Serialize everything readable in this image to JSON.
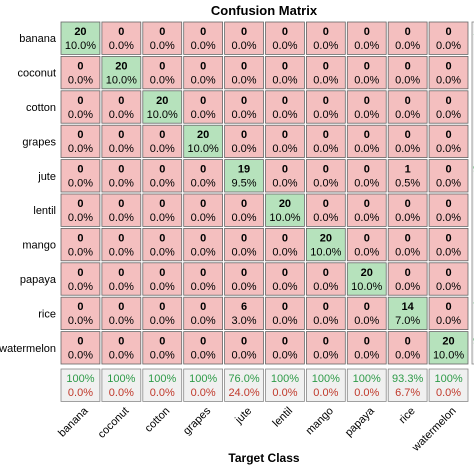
{
  "chart_data": {
    "type": "heatmap",
    "title": "Confusion Matrix",
    "xlabel": "Target Class",
    "row_labels": [
      "banana",
      "coconut",
      "cotton",
      "grapes",
      "jute",
      "lentil",
      "mango",
      "papaya",
      "rice",
      "watermelon"
    ],
    "col_labels": [
      "banana",
      "coconut",
      "cotton",
      "grapes",
      "jute",
      "lentil",
      "mango",
      "papaya",
      "rice",
      "watermelon"
    ],
    "counts": [
      [
        20,
        0,
        0,
        0,
        0,
        0,
        0,
        0,
        0,
        0
      ],
      [
        0,
        20,
        0,
        0,
        0,
        0,
        0,
        0,
        0,
        0
      ],
      [
        0,
        0,
        20,
        0,
        0,
        0,
        0,
        0,
        0,
        0
      ],
      [
        0,
        0,
        0,
        20,
        0,
        0,
        0,
        0,
        0,
        0
      ],
      [
        0,
        0,
        0,
        0,
        19,
        0,
        0,
        0,
        1,
        0
      ],
      [
        0,
        0,
        0,
        0,
        0,
        20,
        0,
        0,
        0,
        0
      ],
      [
        0,
        0,
        0,
        0,
        0,
        0,
        20,
        0,
        0,
        0
      ],
      [
        0,
        0,
        0,
        0,
        0,
        0,
        0,
        20,
        0,
        0
      ],
      [
        0,
        0,
        0,
        0,
        6,
        0,
        0,
        0,
        14,
        0
      ],
      [
        0,
        0,
        0,
        0,
        0,
        0,
        0,
        0,
        0,
        20
      ]
    ],
    "percents": [
      [
        "10.0%",
        "0.0%",
        "0.0%",
        "0.0%",
        "0.0%",
        "0.0%",
        "0.0%",
        "0.0%",
        "0.0%",
        "0.0%"
      ],
      [
        "0.0%",
        "10.0%",
        "0.0%",
        "0.0%",
        "0.0%",
        "0.0%",
        "0.0%",
        "0.0%",
        "0.0%",
        "0.0%"
      ],
      [
        "0.0%",
        "0.0%",
        "10.0%",
        "0.0%",
        "0.0%",
        "0.0%",
        "0.0%",
        "0.0%",
        "0.0%",
        "0.0%"
      ],
      [
        "0.0%",
        "0.0%",
        "0.0%",
        "10.0%",
        "0.0%",
        "0.0%",
        "0.0%",
        "0.0%",
        "0.0%",
        "0.0%"
      ],
      [
        "0.0%",
        "0.0%",
        "0.0%",
        "0.0%",
        "9.5%",
        "0.0%",
        "0.0%",
        "0.0%",
        "0.5%",
        "0.0%"
      ],
      [
        "0.0%",
        "0.0%",
        "0.0%",
        "0.0%",
        "0.0%",
        "10.0%",
        "0.0%",
        "0.0%",
        "0.0%",
        "0.0%"
      ],
      [
        "0.0%",
        "0.0%",
        "0.0%",
        "0.0%",
        "0.0%",
        "0.0%",
        "10.0%",
        "0.0%",
        "0.0%",
        "0.0%"
      ],
      [
        "0.0%",
        "0.0%",
        "0.0%",
        "0.0%",
        "0.0%",
        "0.0%",
        "0.0%",
        "10.0%",
        "0.0%",
        "0.0%"
      ],
      [
        "0.0%",
        "0.0%",
        "0.0%",
        "0.0%",
        "3.0%",
        "0.0%",
        "0.0%",
        "0.0%",
        "7.0%",
        "0.0%"
      ],
      [
        "0.0%",
        "0.0%",
        "0.0%",
        "0.0%",
        "0.0%",
        "0.0%",
        "0.0%",
        "0.0%",
        "0.0%",
        "10.0%"
      ]
    ],
    "col_summary_correct": [
      "100%",
      "100%",
      "100%",
      "100%",
      "76.0%",
      "100%",
      "100%",
      "100%",
      "93.3%",
      "100%"
    ],
    "col_summary_error": [
      "0.0%",
      "0.0%",
      "0.0%",
      "0.0%",
      "24.0%",
      "0.0%",
      "0.0%",
      "0.0%",
      "6.7%",
      "0.0%"
    ],
    "right_edge_partial": [
      "10",
      "9",
      "7",
      "9"
    ],
    "colors": {
      "diagonal": "#b6e2bc",
      "off_diagonal": "#f4bfbf",
      "summary": "#f0f0f0",
      "correct_text": "#2e9b48",
      "error_text": "#c0392b"
    }
  }
}
